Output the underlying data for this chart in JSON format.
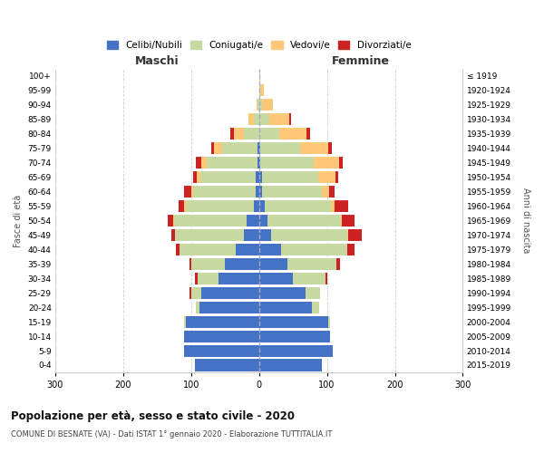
{
  "age_groups": [
    "0-4",
    "5-9",
    "10-14",
    "15-19",
    "20-24",
    "25-29",
    "30-34",
    "35-39",
    "40-44",
    "45-49",
    "50-54",
    "55-59",
    "60-64",
    "65-69",
    "70-74",
    "75-79",
    "80-84",
    "85-89",
    "90-94",
    "95-99",
    "100+"
  ],
  "birth_years": [
    "2015-2019",
    "2010-2014",
    "2005-2009",
    "2000-2004",
    "1995-1999",
    "1990-1994",
    "1985-1989",
    "1980-1984",
    "1975-1979",
    "1970-1974",
    "1965-1969",
    "1960-1964",
    "1955-1959",
    "1950-1954",
    "1945-1949",
    "1940-1944",
    "1935-1939",
    "1930-1934",
    "1925-1929",
    "1920-1924",
    "≤ 1919"
  ],
  "maschi_celibe": [
    95,
    110,
    110,
    108,
    88,
    85,
    60,
    50,
    35,
    22,
    18,
    8,
    5,
    5,
    2,
    2,
    0,
    0,
    0,
    0,
    0
  ],
  "maschi_coniugato": [
    0,
    0,
    0,
    2,
    5,
    15,
    30,
    50,
    82,
    102,
    107,
    100,
    92,
    82,
    75,
    52,
    22,
    8,
    2,
    0,
    0
  ],
  "maschi_vedovo": [
    0,
    0,
    0,
    0,
    0,
    0,
    0,
    0,
    0,
    0,
    1,
    2,
    3,
    5,
    8,
    12,
    15,
    8,
    2,
    0,
    0
  ],
  "maschi_divorziato": [
    0,
    0,
    0,
    0,
    0,
    2,
    5,
    3,
    5,
    5,
    8,
    8,
    10,
    5,
    8,
    5,
    5,
    0,
    0,
    0,
    0
  ],
  "femmine_celibe": [
    92,
    108,
    105,
    102,
    78,
    68,
    50,
    42,
    32,
    18,
    12,
    8,
    5,
    5,
    2,
    2,
    0,
    0,
    0,
    0,
    0
  ],
  "femmine_coniugato": [
    0,
    0,
    0,
    2,
    10,
    22,
    48,
    72,
    98,
    112,
    108,
    98,
    88,
    82,
    78,
    58,
    30,
    15,
    5,
    2,
    0
  ],
  "femmine_vedovo": [
    0,
    0,
    0,
    0,
    0,
    0,
    0,
    0,
    0,
    1,
    2,
    5,
    10,
    25,
    38,
    42,
    40,
    30,
    15,
    5,
    2
  ],
  "femmine_divorziato": [
    0,
    0,
    0,
    0,
    0,
    0,
    3,
    5,
    10,
    20,
    18,
    20,
    8,
    5,
    5,
    5,
    5,
    2,
    0,
    0,
    0
  ],
  "colors": {
    "celibe": "#4472c4",
    "coniugato": "#c5d9a0",
    "vedovo": "#ffc878",
    "divorziato": "#cc2222"
  },
  "legend_labels": [
    "Celibi/Nubili",
    "Coniugati/e",
    "Vedovi/e",
    "Divorziati/e"
  ],
  "title": "Popolazione per età, sesso e stato civile - 2020",
  "subtitle": "COMUNE DI BESNATE (VA) - Dati ISTAT 1° gennaio 2020 - Elaborazione TUTTITALIA.IT",
  "xlabel_left": "Maschi",
  "xlabel_right": "Femmine",
  "ylabel_left": "Fasce di età",
  "ylabel_right": "Anni di nascita",
  "xlim": 300,
  "background_color": "#ffffff"
}
